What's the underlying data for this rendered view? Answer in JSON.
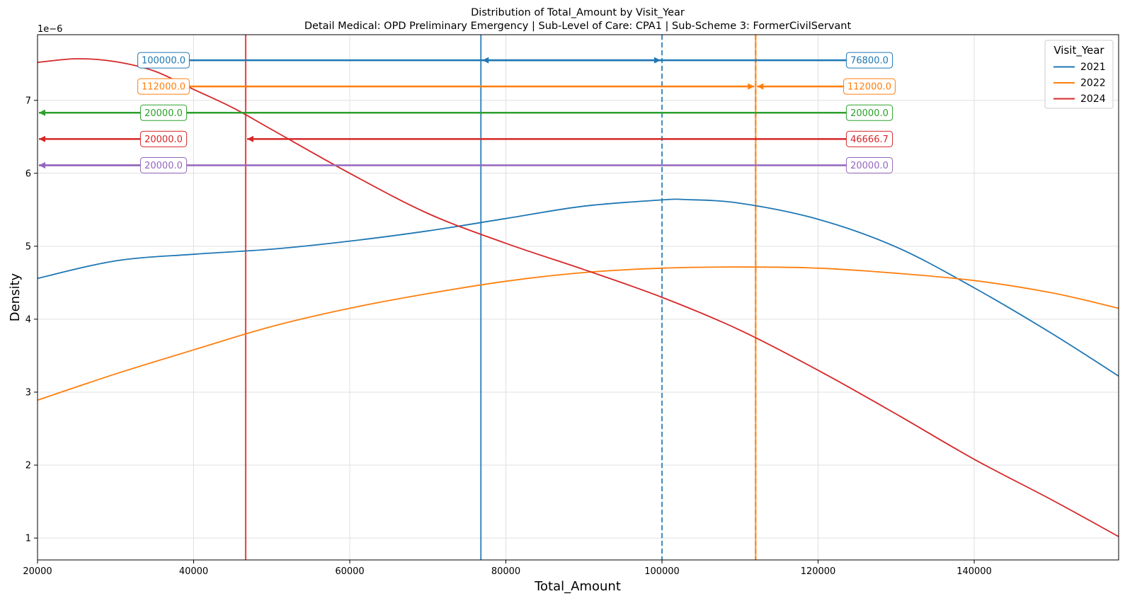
{
  "chart_data": {
    "type": "line",
    "title": "Distribution of Total_Amount by Visit_Year",
    "subtitle": "Detail Medical: OPD Preliminary Emergency | Sub-Level of Care: CPA1 | Sub-Scheme 3: FormerCivilServant",
    "xlabel": "Total_Amount",
    "ylabel": "Density",
    "y_offset_label": "1e−6",
    "xlim": [
      20000,
      158500
    ],
    "ylim": [
      0.7,
      7.9
    ],
    "x_ticks": [
      20000,
      40000,
      60000,
      80000,
      100000,
      120000,
      140000
    ],
    "x_tick_labels": [
      "20000",
      "40000",
      "60000",
      "80000",
      "100000",
      "120000",
      "140000"
    ],
    "y_ticks": [
      1,
      2,
      3,
      4,
      5,
      6,
      7
    ],
    "y_tick_labels": [
      "1",
      "2",
      "3",
      "4",
      "5",
      "6",
      "7"
    ],
    "grid": true,
    "legend": {
      "title": "Visit_Year",
      "position": "top-right"
    },
    "series": [
      {
        "name": "2021",
        "color": "#1f77b4",
        "x": [
          20000,
          30000,
          40000,
          50000,
          60000,
          70000,
          80000,
          90000,
          100000,
          103000,
          110000,
          120000,
          130000,
          140000,
          150000,
          158500
        ],
        "y": [
          4.56,
          4.8,
          4.89,
          4.96,
          5.07,
          5.21,
          5.38,
          5.55,
          5.635,
          5.64,
          5.59,
          5.37,
          4.99,
          4.43,
          3.8,
          3.22
        ]
      },
      {
        "name": "2022",
        "color": "#ff7f0e",
        "x": [
          20000,
          30000,
          40000,
          50000,
          60000,
          70000,
          80000,
          90000,
          100000,
          110000,
          120000,
          130000,
          140000,
          150000,
          158500
        ],
        "y": [
          2.89,
          3.25,
          3.58,
          3.9,
          4.15,
          4.35,
          4.52,
          4.64,
          4.7,
          4.715,
          4.7,
          4.63,
          4.53,
          4.36,
          4.15
        ]
      },
      {
        "name": "2024",
        "color": "#d62728",
        "x": [
          20000,
          25000,
          30000,
          35000,
          40000,
          45000,
          50000,
          60000,
          70000,
          80000,
          90000,
          100000,
          110000,
          120000,
          130000,
          140000,
          150000,
          158500
        ],
        "y": [
          7.52,
          7.57,
          7.53,
          7.4,
          7.15,
          6.9,
          6.6,
          6.0,
          5.45,
          5.04,
          4.68,
          4.3,
          3.85,
          3.3,
          2.7,
          2.08,
          1.52,
          1.02
        ]
      }
    ],
    "vertical_lines": [
      {
        "x": 76800,
        "color": "#1f77b4",
        "style": "solid"
      },
      {
        "x": 100000,
        "color": "#1f77b4",
        "style": "dashed"
      },
      {
        "x": 112000,
        "color": "#ff7f0e",
        "style": "solid"
      },
      {
        "x": 112000,
        "color": "#ff7f0e",
        "style": "dashed"
      },
      {
        "x": 46666.7,
        "color": "#d62728",
        "style": "solid"
      }
    ],
    "annotations": [
      {
        "y": 7.55,
        "color": "#1f77b4",
        "left_label": "100000.0",
        "right_label": "76800.0",
        "left_target": 100000,
        "right_target": 76800
      },
      {
        "y": 7.19,
        "color": "#ff7f0e",
        "left_label": "112000.0",
        "right_label": "112000.0",
        "left_target": 112000,
        "right_target": 112000
      },
      {
        "y": 6.83,
        "color": "#2ca02c",
        "left_label": "20000.0",
        "right_label": "20000.0",
        "left_target": 20000,
        "right_target": 20000
      },
      {
        "y": 6.47,
        "color": "#d62728",
        "left_label": "20000.0",
        "right_label": "46666.7",
        "left_target": 20000,
        "right_target": 46666.7
      },
      {
        "y": 6.11,
        "color": "#9467bd",
        "left_label": "20000.0",
        "right_label": "20000.0",
        "left_target": 20000,
        "right_target": 20000
      }
    ]
  }
}
